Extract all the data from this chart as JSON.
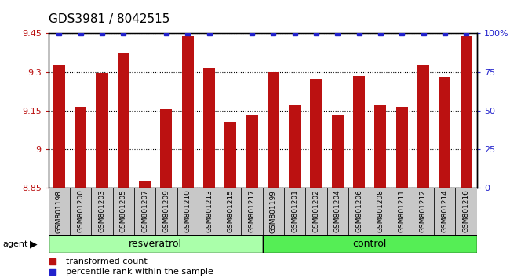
{
  "title": "GDS3981 / 8042515",
  "samples": [
    "GSM801198",
    "GSM801200",
    "GSM801203",
    "GSM801205",
    "GSM801207",
    "GSM801209",
    "GSM801210",
    "GSM801213",
    "GSM801215",
    "GSM801217",
    "GSM801199",
    "GSM801201",
    "GSM801202",
    "GSM801204",
    "GSM801206",
    "GSM801208",
    "GSM801211",
    "GSM801212",
    "GSM801214",
    "GSM801216"
  ],
  "bar_values": [
    9.325,
    9.165,
    9.295,
    9.375,
    8.875,
    9.155,
    9.44,
    9.315,
    9.105,
    9.13,
    9.3,
    9.17,
    9.275,
    9.13,
    9.285,
    9.17,
    9.165,
    9.325,
    9.28,
    9.44
  ],
  "percentile_shown": [
    true,
    true,
    true,
    true,
    false,
    true,
    true,
    true,
    false,
    true,
    true,
    true,
    true,
    true,
    true,
    true,
    true,
    true,
    true,
    true
  ],
  "percentile_value": 100,
  "resveratrol_count": 10,
  "control_count": 10,
  "ylim_left": [
    8.85,
    9.45
  ],
  "ylim_right": [
    0,
    100
  ],
  "yticks_left": [
    8.85,
    9.0,
    9.15,
    9.3,
    9.45
  ],
  "ytick_labels_left": [
    "8.85",
    "9",
    "9.15",
    "9.3",
    "9.45"
  ],
  "yticks_right": [
    0,
    25,
    50,
    75,
    100
  ],
  "ytick_labels_right": [
    "0",
    "25",
    "50",
    "75",
    "100%"
  ],
  "bar_color": "#bb1111",
  "percentile_color": "#2222cc",
  "bg_color": "#c8c8c8",
  "resveratrol_color": "#aaffaa",
  "control_color": "#55ee55",
  "bar_width": 0.55,
  "percentile_marker_size": 5,
  "title_fontsize": 11,
  "tick_fontsize": 8,
  "sample_fontsize": 6.5,
  "group_fontsize": 9,
  "legend_fontsize": 8
}
